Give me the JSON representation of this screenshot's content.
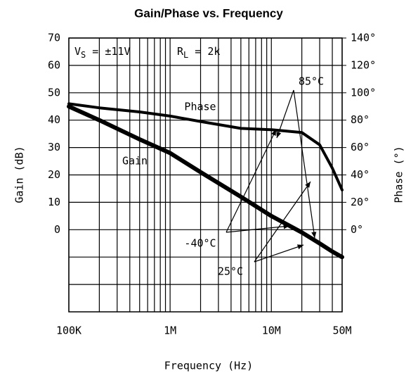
{
  "chart_data": {
    "type": "line",
    "title": "Gain/Phase vs. Frequency",
    "x_label": "Frequency (Hz)",
    "y_label": "Gain (dB)",
    "y2_label": "Phase (°)",
    "x_log": true,
    "grid": true,
    "xlim": [
      100000,
      50000000
    ],
    "xticks": [
      {
        "value": 100000,
        "label": "100K"
      },
      {
        "value": 1000000,
        "label": "1M"
      },
      {
        "value": 10000000,
        "label": "10M"
      },
      {
        "value": 50000000,
        "label": "50M"
      }
    ],
    "x_minor_ticks": [
      200000,
      300000,
      400000,
      500000,
      600000,
      700000,
      800000,
      900000,
      2000000,
      3000000,
      4000000,
      5000000,
      6000000,
      7000000,
      8000000,
      9000000,
      20000000,
      30000000,
      40000000
    ],
    "ylim": [
      -30,
      70
    ],
    "yticks": [
      0,
      10,
      20,
      30,
      40,
      50,
      60,
      70
    ],
    "y_minor_ticks": [
      -20,
      -10
    ],
    "y2lim": [
      -60,
      140
    ],
    "y2ticks": [
      {
        "value": 0,
        "label": "0°"
      },
      {
        "value": 20,
        "label": "20°"
      },
      {
        "value": 40,
        "label": "40°"
      },
      {
        "value": 60,
        "label": "60°"
      },
      {
        "value": 80,
        "label": "80°"
      },
      {
        "value": 100,
        "label": "100°"
      },
      {
        "value": 120,
        "label": "120°"
      },
      {
        "value": 140,
        "label": "140°"
      }
    ],
    "x": [
      100000,
      200000,
      500000,
      1000000,
      2000000,
      5000000,
      10000000,
      20000000,
      30000000,
      40000000,
      50000000
    ],
    "series": [
      {
        "name": "Gain",
        "color": "#000000",
        "values": [
          45,
          40,
          33,
          28,
          21,
          12,
          5,
          -1,
          -5,
          -8,
          -10
        ]
      },
      {
        "name": "Phase",
        "color": "#000000",
        "axis": "y2",
        "values": [
          92,
          89,
          86,
          83,
          79,
          74,
          73,
          71,
          62,
          45,
          29
        ]
      }
    ],
    "conditions": [
      {
        "symbol": "V",
        "sub": "S",
        "text": " = ±11V"
      },
      {
        "symbol": "R",
        "sub": "L",
        "text": " = 2k"
      }
    ],
    "annotations": [
      "85°C",
      "-40°C",
      "25°C"
    ]
  }
}
